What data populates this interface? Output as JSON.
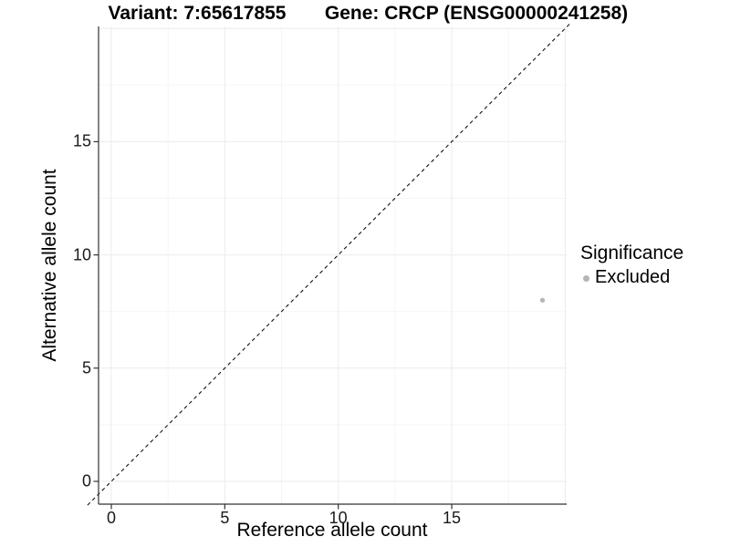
{
  "chart_data": {
    "type": "scatter",
    "title_left": "Variant: 7:65617855",
    "title_right": "Gene: CRCP (ENSG00000241258)",
    "xlabel": "Reference allele count",
    "ylabel": "Alternative allele count",
    "x_ticks": [
      0,
      5,
      10,
      15
    ],
    "y_ticks": [
      0,
      5,
      10,
      15
    ],
    "xlim": [
      -1.05,
      20.2
    ],
    "ylim": [
      -1.05,
      20.2
    ],
    "grid": {
      "major": [
        0,
        5,
        10,
        15,
        20
      ],
      "minor": [
        2.5,
        7.5,
        12.5,
        17.5
      ]
    },
    "identity_line": {
      "slope": 1,
      "intercept": 0,
      "style": "dashed"
    },
    "points": [
      {
        "x": 19,
        "y": 8,
        "series": "Excluded"
      }
    ],
    "legend": {
      "title": "Significance",
      "items": [
        {
          "label": "Excluded",
          "color": "#b5b5b5"
        }
      ]
    },
    "colors": {
      "background": "#ffffff",
      "point": "#b5b5b5",
      "axis_line": "#333333",
      "grid_major": "#ebebeb",
      "grid_minor": "#f5f5f5",
      "identity_line": "#111111",
      "text": "#000000"
    }
  }
}
